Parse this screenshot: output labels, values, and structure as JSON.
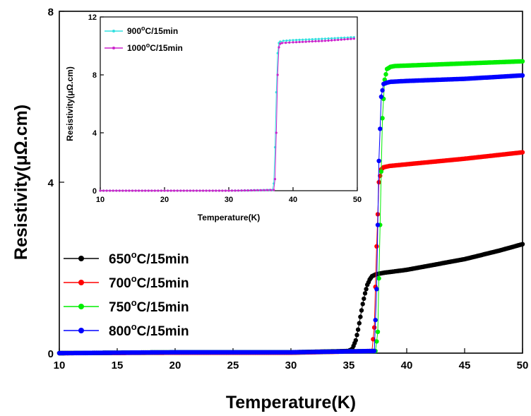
{
  "chart_data": [
    {
      "type": "scatter",
      "xlabel": "Temperature(K)",
      "ylabel": "Resistivity(μΩ.cm)",
      "xlim": [
        10,
        50
      ],
      "ylim": [
        0,
        8
      ],
      "xticks": [
        "10",
        "15",
        "20",
        "25",
        "30",
        "35",
        "40",
        "45",
        "50"
      ],
      "yticks": [
        "0",
        "4",
        "8"
      ],
      "grid": false,
      "legend_position": "bottom-left",
      "series": [
        {
          "name": "650",
          "unit": "C/15min",
          "color": "#000000",
          "x": [
            10,
            20,
            30,
            35.0,
            35.3,
            35.6,
            35.8,
            36.0,
            36.2,
            36.4,
            36.6,
            36.8,
            37.0,
            37.3,
            37.6,
            38.0,
            40,
            42,
            45,
            48,
            50
          ],
          "y": [
            0.0,
            0.02,
            0.02,
            0.05,
            0.1,
            0.3,
            0.55,
            0.85,
            1.15,
            1.4,
            1.6,
            1.72,
            1.8,
            1.84,
            1.86,
            1.88,
            1.95,
            2.05,
            2.2,
            2.4,
            2.55
          ]
        },
        {
          "name": "700",
          "unit": "C/15min",
          "color": "#ff0000",
          "x": [
            10,
            20,
            30,
            37.0,
            37.2,
            37.4,
            37.6,
            37.8,
            38.0,
            38.5,
            40,
            45,
            50
          ],
          "y": [
            0.0,
            0.01,
            0.01,
            0.05,
            0.6,
            2.5,
            4.0,
            4.3,
            4.35,
            4.38,
            4.42,
            4.55,
            4.7
          ]
        },
        {
          "name": "750",
          "unit": "C/15min",
          "color": "#00ee00",
          "x": [
            10,
            20,
            30,
            37.3,
            37.5,
            37.7,
            37.9,
            38.1,
            38.3,
            38.6,
            39.0,
            40,
            45,
            50
          ],
          "y": [
            0.0,
            0.02,
            0.02,
            0.05,
            0.5,
            3.0,
            5.5,
            6.4,
            6.65,
            6.7,
            6.72,
            6.73,
            6.78,
            6.83
          ]
        },
        {
          "name": "800",
          "unit": "C/15min",
          "color": "#0000ff",
          "x": [
            10,
            20,
            30,
            37.2,
            37.4,
            37.6,
            37.8,
            38.0,
            38.3,
            38.6,
            40,
            45,
            50
          ],
          "y": [
            0.0,
            0.02,
            0.02,
            0.05,
            1.5,
            4.5,
            6.0,
            6.3,
            6.33,
            6.35,
            6.37,
            6.42,
            6.5
          ]
        }
      ]
    },
    {
      "type": "scatter",
      "xlabel": "Temperature(K)",
      "ylabel": "Resistivity(μΩ.cm)",
      "xlim": [
        10,
        50
      ],
      "ylim": [
        0,
        12
      ],
      "xticks": [
        "10",
        "20",
        "30",
        "40",
        "50"
      ],
      "yticks": [
        "0",
        "4",
        "8",
        "12"
      ],
      "grid": false,
      "legend_position": "top-left",
      "series": [
        {
          "name": "900",
          "unit": "C/15min",
          "color": "#33e0e0",
          "x": [
            10,
            20,
            30,
            36.8,
            37.0,
            37.2,
            37.4,
            37.6,
            37.8,
            38.0,
            38.5,
            40,
            45,
            49.5
          ],
          "y": [
            0.0,
            0.0,
            0.0,
            0.05,
            0.5,
            3.0,
            6.8,
            9.5,
            10.2,
            10.3,
            10.35,
            10.4,
            10.5,
            10.6
          ]
        },
        {
          "name": "1000",
          "unit": "C/15min",
          "color": "#cc22cc",
          "x": [
            10,
            20,
            30,
            37.0,
            37.2,
            37.4,
            37.6,
            37.8,
            38.0,
            38.3,
            40,
            45,
            49.5
          ],
          "y": [
            0.0,
            0.0,
            0.0,
            0.05,
            0.8,
            4.0,
            8.0,
            9.9,
            10.15,
            10.2,
            10.25,
            10.35,
            10.5
          ]
        }
      ]
    }
  ]
}
